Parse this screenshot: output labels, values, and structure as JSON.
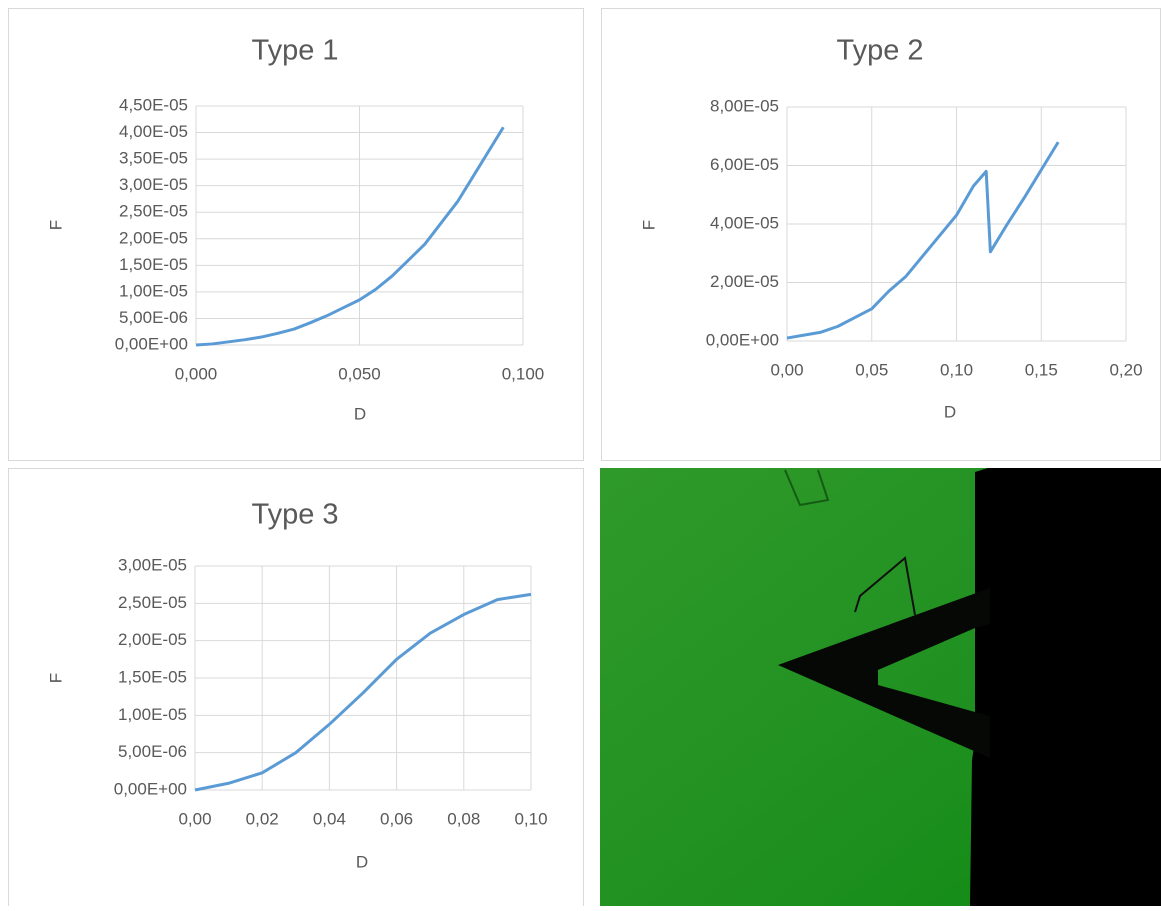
{
  "chart_data": [
    {
      "type": "line",
      "title": "Type 1",
      "x_label": "D",
      "y_label": "F",
      "color": "#5b9bd5",
      "grid": true,
      "xlim": [
        0,
        0.1
      ],
      "ylim": [
        0,
        4.5e-05
      ],
      "xticks": [
        {
          "value": 0,
          "label": "0,000"
        },
        {
          "value": 0.05,
          "label": "0,050"
        },
        {
          "value": 0.1,
          "label": "0,100"
        }
      ],
      "yticks": [
        {
          "value": 0,
          "label": "0,00E+00"
        },
        {
          "value": 5e-06,
          "label": "5,00E-06"
        },
        {
          "value": 1e-05,
          "label": "1,00E-05"
        },
        {
          "value": 1.5e-05,
          "label": "1,50E-05"
        },
        {
          "value": 2e-05,
          "label": "2,00E-05"
        },
        {
          "value": 2.5e-05,
          "label": "2,50E-05"
        },
        {
          "value": 3e-05,
          "label": "3,00E-05"
        },
        {
          "value": 3.5e-05,
          "label": "3,50E-05"
        },
        {
          "value": 4e-05,
          "label": "4,00E-05"
        },
        {
          "value": 4.5e-05,
          "label": "4,50E-05"
        }
      ],
      "x": [
        0,
        0.005,
        0.01,
        0.015,
        0.02,
        0.025,
        0.03,
        0.035,
        0.04,
        0.045,
        0.05,
        0.055,
        0.06,
        0.065,
        0.07,
        0.075,
        0.08,
        0.085,
        0.09,
        0.094
      ],
      "values": [
        0,
        2e-07,
        6e-07,
        1e-06,
        1.5e-06,
        2.2e-06,
        3e-06,
        4.2e-06,
        5.5e-06,
        7e-06,
        8.5e-06,
        1.05e-05,
        1.3e-05,
        1.6e-05,
        1.9e-05,
        2.3e-05,
        2.7e-05,
        3.2e-05,
        3.7e-05,
        4.1e-05
      ]
    },
    {
      "type": "line",
      "title": "Type 2",
      "x_label": "D",
      "y_label": "F",
      "color": "#5b9bd5",
      "grid": true,
      "xlim": [
        0,
        0.2
      ],
      "ylim": [
        0,
        8e-05
      ],
      "xticks": [
        {
          "value": 0,
          "label": "0,00"
        },
        {
          "value": 0.05,
          "label": "0,05"
        },
        {
          "value": 0.1,
          "label": "0,10"
        },
        {
          "value": 0.15,
          "label": "0,15"
        },
        {
          "value": 0.2,
          "label": "0,20"
        }
      ],
      "yticks": [
        {
          "value": 0,
          "label": "0,00E+00"
        },
        {
          "value": 2e-05,
          "label": "2,00E-05"
        },
        {
          "value": 4e-05,
          "label": "4,00E-05"
        },
        {
          "value": 6e-05,
          "label": "6,00E-05"
        },
        {
          "value": 8e-05,
          "label": "8,00E-05"
        }
      ],
      "x": [
        0,
        0.01,
        0.02,
        0.03,
        0.04,
        0.05,
        0.06,
        0.07,
        0.08,
        0.09,
        0.1,
        0.11,
        0.1175,
        0.12,
        0.13,
        0.14,
        0.15,
        0.16
      ],
      "values": [
        1e-06,
        2e-06,
        3e-06,
        5e-06,
        8e-06,
        1.1e-05,
        1.7e-05,
        2.2e-05,
        2.9e-05,
        3.6e-05,
        4.3e-05,
        5.3e-05,
        5.8e-05,
        3.05e-05,
        4e-05,
        4.9e-05,
        5.85e-05,
        6.8e-05
      ]
    },
    {
      "type": "line",
      "title": "Type 3",
      "x_label": "D",
      "y_label": "F",
      "color": "#5b9bd5",
      "grid": true,
      "xlim": [
        0,
        0.1
      ],
      "ylim": [
        0,
        3e-05
      ],
      "xticks": [
        {
          "value": 0,
          "label": "0,00"
        },
        {
          "value": 0.02,
          "label": "0,02"
        },
        {
          "value": 0.04,
          "label": "0,04"
        },
        {
          "value": 0.06,
          "label": "0,06"
        },
        {
          "value": 0.08,
          "label": "0,08"
        },
        {
          "value": 0.1,
          "label": "0,10"
        }
      ],
      "yticks": [
        {
          "value": 0,
          "label": "0,00E+00"
        },
        {
          "value": 5e-06,
          "label": "5,00E-06"
        },
        {
          "value": 1e-05,
          "label": "1,00E-05"
        },
        {
          "value": 1.5e-05,
          "label": "1,50E-05"
        },
        {
          "value": 2e-05,
          "label": "2,00E-05"
        },
        {
          "value": 2.5e-05,
          "label": "2,50E-05"
        },
        {
          "value": 3e-05,
          "label": "3,00E-05"
        }
      ],
      "x": [
        0,
        0.01,
        0.02,
        0.03,
        0.04,
        0.05,
        0.06,
        0.07,
        0.08,
        0.09,
        0.1
      ],
      "values": [
        0,
        9e-07,
        2.3e-06,
        5e-06,
        8.8e-06,
        1.3e-05,
        1.75e-05,
        2.1e-05,
        2.35e-05,
        2.55e-05,
        2.62e-05
      ]
    }
  ]
}
